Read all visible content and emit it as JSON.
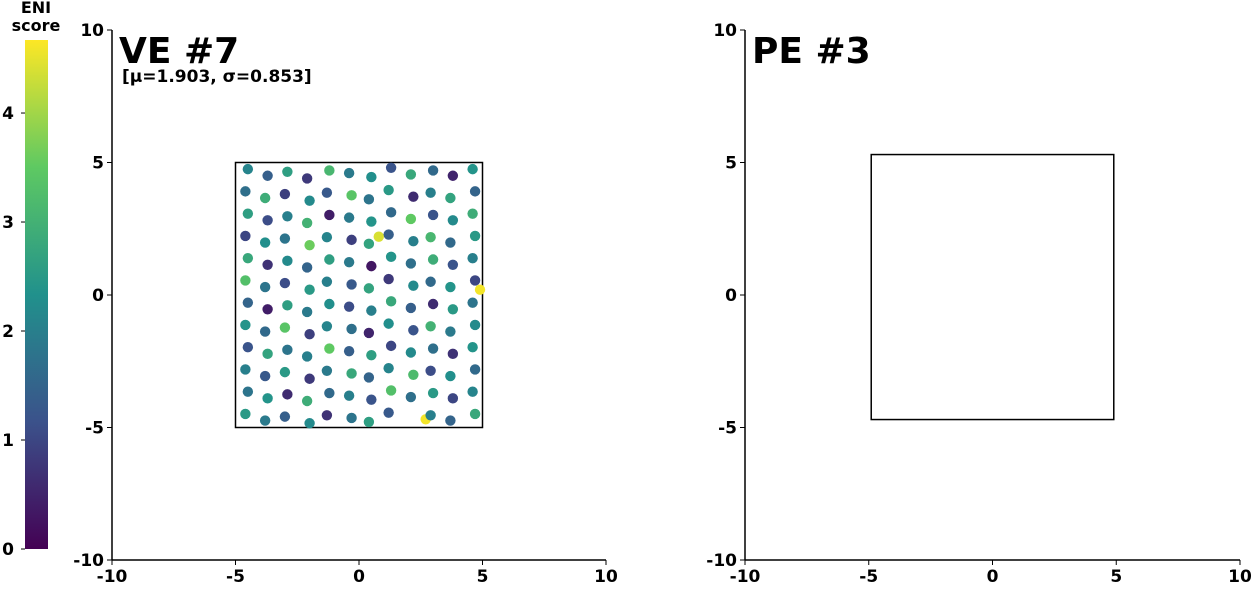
{
  "chart_data": [
    {
      "type": "scatter",
      "title": "VE #7",
      "subtitle": "[μ=1.903, σ=0.853]",
      "xlim": [
        -10,
        10
      ],
      "ylim": [
        -10,
        10
      ],
      "xticks": [
        -10,
        -5,
        0,
        5,
        10
      ],
      "yticks": [
        -10,
        -5,
        0,
        5,
        10
      ],
      "box": {
        "x": [
          -5,
          5
        ],
        "y": [
          -5,
          5
        ]
      },
      "colorbar": {
        "label": [
          "ENI",
          "score"
        ],
        "lim": [
          0,
          4.67
        ],
        "ticks": [
          0,
          1,
          2,
          3,
          4
        ],
        "colormap": "viridis"
      },
      "x": [
        -4.5,
        -3.7,
        -2.9,
        -2.1,
        -1.2,
        -0.4,
        0.5,
        1.3,
        2.1,
        3.0,
        3.8,
        4.6,
        -4.6,
        -3.8,
        -3.0,
        -2.0,
        -1.3,
        -0.3,
        0.4,
        1.2,
        2.2,
        2.9,
        3.7,
        4.7,
        -4.5,
        -3.7,
        -2.9,
        -2.1,
        -1.2,
        -0.4,
        0.5,
        1.3,
        2.1,
        3.0,
        3.8,
        4.6,
        -4.6,
        -3.8,
        -3.0,
        -2.0,
        -1.3,
        -0.3,
        0.4,
        1.2,
        2.2,
        2.9,
        3.7,
        4.7,
        -4.5,
        -3.7,
        -2.9,
        -2.1,
        -1.2,
        -0.4,
        0.5,
        1.3,
        2.1,
        3.0,
        3.8,
        4.6,
        -4.6,
        -3.8,
        -3.0,
        -2.0,
        -1.3,
        -0.3,
        0.4,
        1.2,
        2.2,
        2.9,
        3.7,
        4.7,
        -4.5,
        -3.7,
        -2.9,
        -2.1,
        -1.2,
        -0.4,
        0.5,
        1.3,
        2.1,
        3.0,
        3.8,
        4.6,
        -4.6,
        -3.8,
        -3.0,
        -2.0,
        -1.3,
        -0.3,
        0.4,
        1.2,
        2.2,
        2.9,
        3.7,
        4.7,
        -4.5,
        -3.7,
        -2.9,
        -2.1,
        -1.2,
        -0.4,
        0.5,
        1.3,
        2.1,
        3.0,
        3.8,
        4.6,
        -4.6,
        -3.8,
        -3.0,
        -2.0,
        -1.3,
        -0.3,
        0.4,
        1.2,
        2.2,
        2.9,
        3.7,
        4.7,
        -4.5,
        -3.7,
        -2.9,
        -2.1,
        -1.2,
        -0.4,
        0.5,
        1.3,
        2.1,
        3.0,
        3.8,
        4.6,
        -4.6,
        -3.8,
        -3.0,
        -2.0,
        -1.3,
        -0.3,
        0.4,
        1.2,
        2.7,
        2.9,
        3.7,
        4.7,
        4.9,
        0.8
      ],
      "y": [
        4.75,
        4.5,
        4.65,
        4.4,
        4.7,
        4.6,
        4.45,
        4.8,
        4.55,
        4.7,
        4.5,
        4.75,
        3.91,
        3.66,
        3.81,
        3.56,
        3.86,
        3.76,
        3.61,
        3.96,
        3.71,
        3.86,
        3.66,
        3.91,
        3.07,
        2.82,
        2.97,
        2.72,
        3.02,
        2.92,
        2.77,
        3.12,
        2.87,
        3.02,
        2.82,
        3.07,
        2.23,
        1.98,
        2.13,
        1.88,
        2.18,
        2.08,
        1.93,
        2.28,
        2.03,
        2.18,
        1.98,
        2.23,
        1.39,
        1.14,
        1.29,
        1.04,
        1.34,
        1.24,
        1.09,
        1.44,
        1.19,
        1.34,
        1.14,
        1.39,
        0.55,
        0.3,
        0.45,
        0.2,
        0.5,
        0.4,
        0.25,
        0.6,
        0.35,
        0.5,
        0.3,
        0.55,
        -0.29,
        -0.54,
        -0.39,
        -0.64,
        -0.34,
        -0.44,
        -0.59,
        -0.24,
        -0.49,
        -0.34,
        -0.54,
        -0.29,
        -1.13,
        -1.38,
        -1.23,
        -1.48,
        -1.18,
        -1.28,
        -1.43,
        -1.08,
        -1.33,
        -1.18,
        -1.38,
        -1.13,
        -1.97,
        -2.22,
        -2.07,
        -2.32,
        -2.02,
        -2.12,
        -2.27,
        -1.92,
        -2.17,
        -2.02,
        -2.22,
        -1.97,
        -2.81,
        -3.06,
        -2.91,
        -3.16,
        -2.86,
        -2.96,
        -3.11,
        -2.76,
        -3.01,
        -2.86,
        -3.06,
        -2.81,
        -3.65,
        -3.9,
        -3.75,
        -4.0,
        -3.7,
        -3.8,
        -3.95,
        -3.6,
        -3.85,
        -3.7,
        -3.9,
        -3.65,
        -4.49,
        -4.74,
        -4.59,
        -4.84,
        -4.54,
        -4.64,
        -4.79,
        -4.44,
        -4.69,
        -4.54,
        -4.74,
        -4.49,
        0.2,
        2.2
      ],
      "values": [
        2.1,
        1.4,
        2.6,
        0.8,
        3.1,
        1.9,
        2.3,
        1.2,
        2.8,
        1.6,
        0.5,
        2.4,
        1.7,
        2.9,
        0.9,
        2.2,
        1.3,
        3.4,
        1.8,
        2.5,
        0.6,
        2.0,
        2.7,
        1.5,
        2.6,
        1.1,
        2.0,
        3.0,
        0.4,
        1.9,
        2.4,
        1.6,
        3.5,
        1.2,
        2.2,
        2.9,
        1.0,
        2.3,
        1.8,
        3.6,
        2.1,
        0.9,
        2.7,
        1.4,
        2.0,
        3.1,
        1.6,
        2.5,
        2.8,
        0.7,
        2.2,
        1.5,
        2.6,
        1.9,
        0.3,
        2.4,
        1.7,
        2.9,
        1.2,
        2.0,
        3.3,
        1.8,
        1.1,
        2.5,
        2.0,
        1.3,
        2.7,
        0.8,
        2.2,
        1.6,
        2.4,
        1.0,
        1.5,
        0.4,
        2.6,
        1.9,
        2.3,
        1.1,
        2.0,
        2.8,
        1.4,
        0.6,
        2.5,
        1.8,
        2.4,
        1.6,
        3.4,
        0.9,
        2.1,
        1.7,
        0.5,
        2.3,
        1.2,
        3.0,
        1.9,
        2.2,
        1.2,
        2.7,
        1.8,
        2.0,
        3.5,
        1.4,
        2.6,
        1.0,
        2.2,
        1.7,
        0.7,
        2.4,
        2.0,
        1.3,
        2.5,
        0.8,
        1.9,
        2.8,
        1.5,
        2.1,
        3.2,
        1.1,
        2.3,
        1.6,
        1.8,
        2.4,
        0.6,
        2.9,
        1.6,
        2.0,
        1.2,
        3.3,
        1.7,
        2.5,
        1.0,
        2.1,
        2.5,
        1.9,
        1.4,
        2.2,
        0.7,
        1.8,
        2.6,
        1.3,
        4.6,
        2.0,
        1.5,
        2.8,
        4.6,
        4.4
      ]
    },
    {
      "type": "scatter",
      "title": "PE #3",
      "xlim": [
        -10,
        10
      ],
      "ylim": [
        -10,
        10
      ],
      "xticks": [
        -10,
        -5,
        0,
        5,
        10
      ],
      "yticks": [
        -10,
        -5,
        0,
        5,
        10
      ],
      "box": {
        "x": [
          -4.9,
          4.9
        ],
        "y": [
          -4.7,
          5.3
        ]
      },
      "x": [],
      "y": [],
      "values": []
    }
  ]
}
